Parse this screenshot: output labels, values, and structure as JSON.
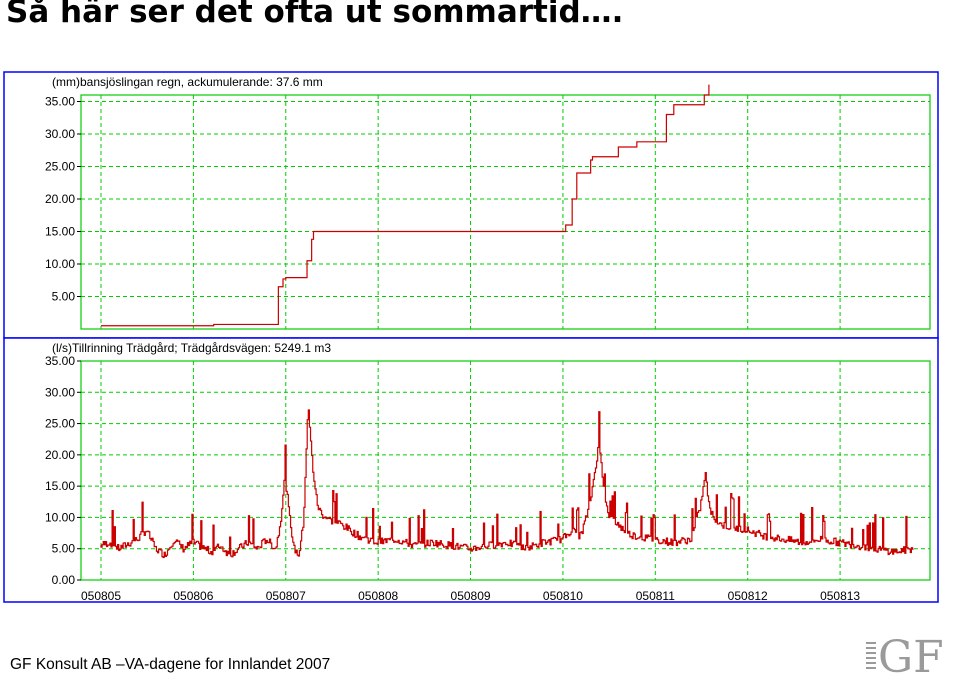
{
  "slide": {
    "title": "Så här ser det ofta ut sommartid….",
    "footer": "GF Konsult AB –VA-dagene for Innlandet 2007",
    "logo_text": "GF"
  },
  "colors": {
    "frame": "#0000ff",
    "grid": "#00cc00",
    "series": "#cc0000",
    "background": "#ffffff"
  },
  "chart_data": [
    {
      "type": "line",
      "title": "(mm)bansjöslingan regn, ackumulerande: 37.6 mm",
      "ylim": [
        0,
        36
      ],
      "yticks": [
        "5.00",
        "10.00",
        "15.00",
        "20.00",
        "25.00",
        "30.00",
        "35.00"
      ],
      "xlim": [
        0,
        8.8
      ],
      "x_note_unit": "days after 050805",
      "grid": true,
      "series": [
        {
          "values_x": [
            0,
            1.2,
            1.22,
            1.9,
            1.92,
            1.97,
            2.0,
            2.2,
            2.23,
            2.28,
            2.3,
            5.0,
            5.03,
            5.1,
            5.15,
            5.3,
            5.32,
            5.55,
            5.6,
            5.8,
            6.1,
            6.12,
            6.2,
            6.25,
            6.5,
            6.53,
            6.58
          ],
          "values_y": [
            0.5,
            0.5,
            0.7,
            0.7,
            6.5,
            7.7,
            7.9,
            7.9,
            10.5,
            13.8,
            15.0,
            15.0,
            16.0,
            20.0,
            24.0,
            26.0,
            26.5,
            26.5,
            28.0,
            28.8,
            28.8,
            33.0,
            34.5,
            34.5,
            34.5,
            36.0,
            37.6
          ]
        }
      ]
    },
    {
      "type": "line",
      "title": "(l/s)Tillrinning Trädgård; Trädgårdsvägen: 5249.1 m3",
      "ylim": [
        0,
        35
      ],
      "yticks": [
        "0.00",
        "5.00",
        "10.00",
        "15.00",
        "20.00",
        "25.00",
        "30.00",
        "35.00"
      ],
      "xlim": [
        0,
        8.8
      ],
      "xticks": [
        "050805",
        "050806",
        "050807",
        "050808",
        "050809",
        "050810",
        "050811",
        "050812",
        "050813"
      ],
      "grid": true,
      "series": [
        {
          "values_x": [
            0,
            0.1,
            0.2,
            0.4,
            0.5,
            0.6,
            0.7,
            0.8,
            0.9,
            1.0,
            1.2,
            1.3,
            1.4,
            1.6,
            1.7,
            1.8,
            1.9,
            1.95,
            2.0,
            2.05,
            2.1,
            2.15,
            2.2,
            2.25,
            2.3,
            2.35,
            2.4,
            2.5,
            2.6,
            2.8,
            3.0,
            3.2,
            3.4,
            3.6,
            3.8,
            4.0,
            4.2,
            4.4,
            4.6,
            4.8,
            5.0,
            5.1,
            5.2,
            5.3,
            5.4,
            5.45,
            5.5,
            5.6,
            5.7,
            5.8,
            6.0,
            6.2,
            6.4,
            6.5,
            6.55,
            6.6,
            6.7,
            6.8,
            7.0,
            7.2,
            7.4,
            7.6,
            7.8,
            8.0,
            8.2,
            8.4,
            8.6,
            8.8
          ],
          "values_y": [
            5.5,
            6.0,
            5.0,
            6.5,
            8.0,
            5.0,
            4.0,
            6.5,
            5.0,
            6.0,
            4.5,
            5.5,
            4.0,
            6.0,
            5.0,
            6.5,
            5.0,
            9.0,
            17.0,
            10.0,
            5.0,
            4.0,
            9.0,
            28.0,
            18.0,
            12.0,
            10.5,
            9.5,
            9.0,
            7.0,
            6.0,
            6.5,
            5.5,
            6.0,
            5.5,
            5.0,
            5.5,
            6.0,
            5.0,
            6.0,
            6.5,
            8.0,
            7.0,
            12.0,
            22.0,
            15.0,
            10.0,
            9.0,
            7.5,
            7.0,
            6.5,
            6.0,
            6.5,
            12.0,
            17.0,
            11.0,
            9.0,
            8.5,
            8.0,
            7.0,
            6.5,
            6.0,
            6.5,
            6.0,
            5.5,
            5.0,
            4.5,
            5.0
          ]
        }
      ]
    }
  ]
}
